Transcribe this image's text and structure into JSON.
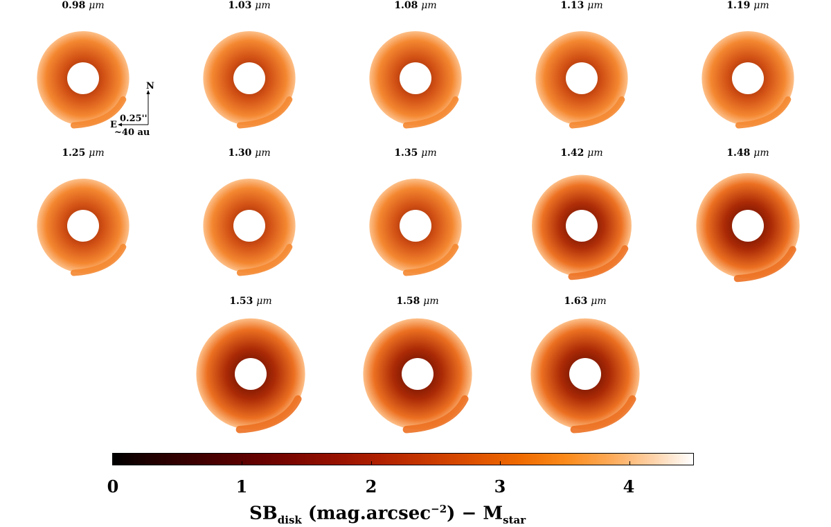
{
  "panels": [
    {
      "value": "0.98",
      "level": 0.35
    },
    {
      "value": "1.03",
      "level": 0.35
    },
    {
      "value": "1.08",
      "level": 0.35
    },
    {
      "value": "1.13",
      "level": 0.35
    },
    {
      "value": "1.19",
      "level": 0.35
    },
    {
      "value": "1.25",
      "level": 0.35
    },
    {
      "value": "1.30",
      "level": 0.35
    },
    {
      "value": "1.35",
      "level": 0.35
    },
    {
      "value": "1.42",
      "level": 0.75
    },
    {
      "value": "1.48",
      "level": 0.8
    },
    {
      "value": "1.53",
      "level": 0.8
    },
    {
      "value": "1.58",
      "level": 0.8
    },
    {
      "value": "1.63",
      "level": 0.8
    }
  ],
  "unit": "μm",
  "compass": {
    "north": "N",
    "east": "E",
    "scale_angle": "0.25''",
    "scale_distance": "~40 au"
  },
  "colorbar": {
    "ticks": [
      "0",
      "1",
      "2",
      "3",
      "4"
    ],
    "title_main": "SB",
    "title_sub": "disk",
    "title_mid": " (mag.arcsec",
    "title_sup": "−2",
    "title_end": ") − M",
    "title_sub2": "star"
  }
}
